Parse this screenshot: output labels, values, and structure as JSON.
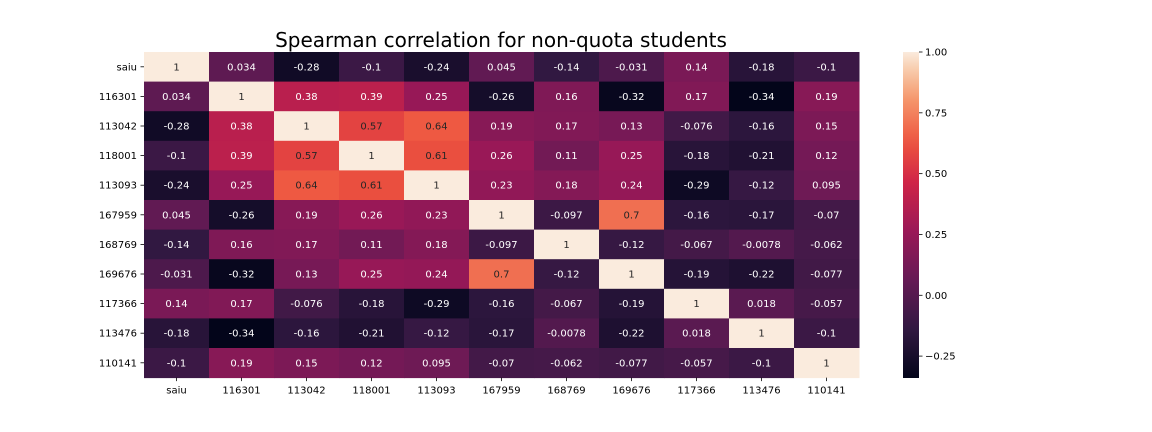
{
  "chart_data": {
    "type": "heatmap",
    "title": "Spearman correlation for non-quota students",
    "xlabel": "",
    "ylabel": "",
    "labels": [
      "saiu",
      "116301",
      "113042",
      "118001",
      "113093",
      "167959",
      "168769",
      "169676",
      "117366",
      "113476",
      "110141"
    ],
    "matrix": [
      [
        1,
        0.034,
        -0.28,
        -0.1,
        -0.24,
        0.045,
        -0.14,
        -0.031,
        0.14,
        -0.18,
        -0.1
      ],
      [
        0.034,
        1,
        0.38,
        0.39,
        0.25,
        -0.26,
        0.16,
        -0.32,
        0.17,
        -0.34,
        0.19
      ],
      [
        -0.28,
        0.38,
        1,
        0.57,
        0.64,
        0.19,
        0.17,
        0.13,
        -0.076,
        -0.16,
        0.15
      ],
      [
        -0.1,
        0.39,
        0.57,
        1,
        0.61,
        0.26,
        0.11,
        0.25,
        -0.18,
        -0.21,
        0.12
      ],
      [
        -0.24,
        0.25,
        0.64,
        0.61,
        1,
        0.23,
        0.18,
        0.24,
        -0.29,
        -0.12,
        0.095
      ],
      [
        0.045,
        -0.26,
        0.19,
        0.26,
        0.23,
        1,
        -0.097,
        0.7,
        -0.16,
        -0.17,
        -0.07
      ],
      [
        -0.14,
        0.16,
        0.17,
        0.11,
        0.18,
        -0.097,
        1,
        -0.12,
        -0.067,
        -0.0078,
        -0.062
      ],
      [
        -0.031,
        -0.32,
        0.13,
        0.25,
        0.24,
        0.7,
        -0.12,
        1,
        -0.19,
        -0.22,
        -0.077
      ],
      [
        0.14,
        0.17,
        -0.076,
        -0.18,
        -0.29,
        -0.16,
        -0.067,
        -0.19,
        1,
        0.018,
        -0.057
      ],
      [
        -0.18,
        -0.34,
        -0.16,
        -0.21,
        -0.12,
        -0.17,
        -0.0078,
        -0.22,
        0.018,
        1,
        -0.1
      ],
      [
        -0.1,
        0.19,
        0.15,
        0.12,
        0.095,
        -0.07,
        -0.062,
        -0.077,
        -0.057,
        -0.1,
        1
      ]
    ],
    "cell_label_text": [
      [
        "1",
        "0.034",
        "-0.28",
        "-0.1",
        "-0.24",
        "0.045",
        "-0.14",
        "-0.031",
        "0.14",
        "-0.18",
        "-0.1"
      ],
      [
        "0.034",
        "1",
        "0.38",
        "0.39",
        "0.25",
        "-0.26",
        "0.16",
        "-0.32",
        "0.17",
        "-0.34",
        "0.19"
      ],
      [
        "-0.28",
        "0.38",
        "1",
        "0.57",
        "0.64",
        "0.19",
        "0.17",
        "0.13",
        "-0.076",
        "-0.16",
        "0.15"
      ],
      [
        "-0.1",
        "0.39",
        "0.57",
        "1",
        "0.61",
        "0.26",
        "0.11",
        "0.25",
        "-0.18",
        "-0.21",
        "0.12"
      ],
      [
        "-0.24",
        "0.25",
        "0.64",
        "0.61",
        "1",
        "0.23",
        "0.18",
        "0.24",
        "-0.29",
        "-0.12",
        "0.095"
      ],
      [
        "0.045",
        "-0.26",
        "0.19",
        "0.26",
        "0.23",
        "1",
        "-0.097",
        "0.7",
        "-0.16",
        "-0.17",
        "-0.07"
      ],
      [
        "-0.14",
        "0.16",
        "0.17",
        "0.11",
        "0.18",
        "-0.097",
        "1",
        "-0.12",
        "-0.067",
        "-0.0078",
        "-0.062"
      ],
      [
        "-0.031",
        "-0.32",
        "0.13",
        "0.25",
        "0.24",
        "0.7",
        "-0.12",
        "1",
        "-0.19",
        "-0.22",
        "-0.077"
      ],
      [
        "0.14",
        "0.17",
        "-0.076",
        "-0.18",
        "-0.29",
        "-0.16",
        "-0.067",
        "-0.19",
        "1",
        "0.018",
        "-0.057"
      ],
      [
        "-0.18",
        "-0.34",
        "-0.16",
        "-0.21",
        "-0.12",
        "-0.17",
        "-0.0078",
        "-0.22",
        "0.018",
        "1",
        "-0.1"
      ],
      [
        "-0.1",
        "0.19",
        "0.15",
        "0.12",
        "0.095",
        "-0.07",
        "-0.062",
        "-0.077",
        "-0.057",
        "-0.1",
        "1"
      ]
    ],
    "colorbar": {
      "range": [
        -0.34,
        1.0
      ],
      "ticks": [
        1.0,
        0.75,
        0.5,
        0.25,
        0.0,
        -0.25
      ],
      "tick_labels": [
        "1.00",
        "0.75",
        "0.50",
        "0.25",
        "0.00",
        "−0.25"
      ],
      "colormap": "rocket"
    },
    "grid": false,
    "legend": "colorbar-right"
  }
}
